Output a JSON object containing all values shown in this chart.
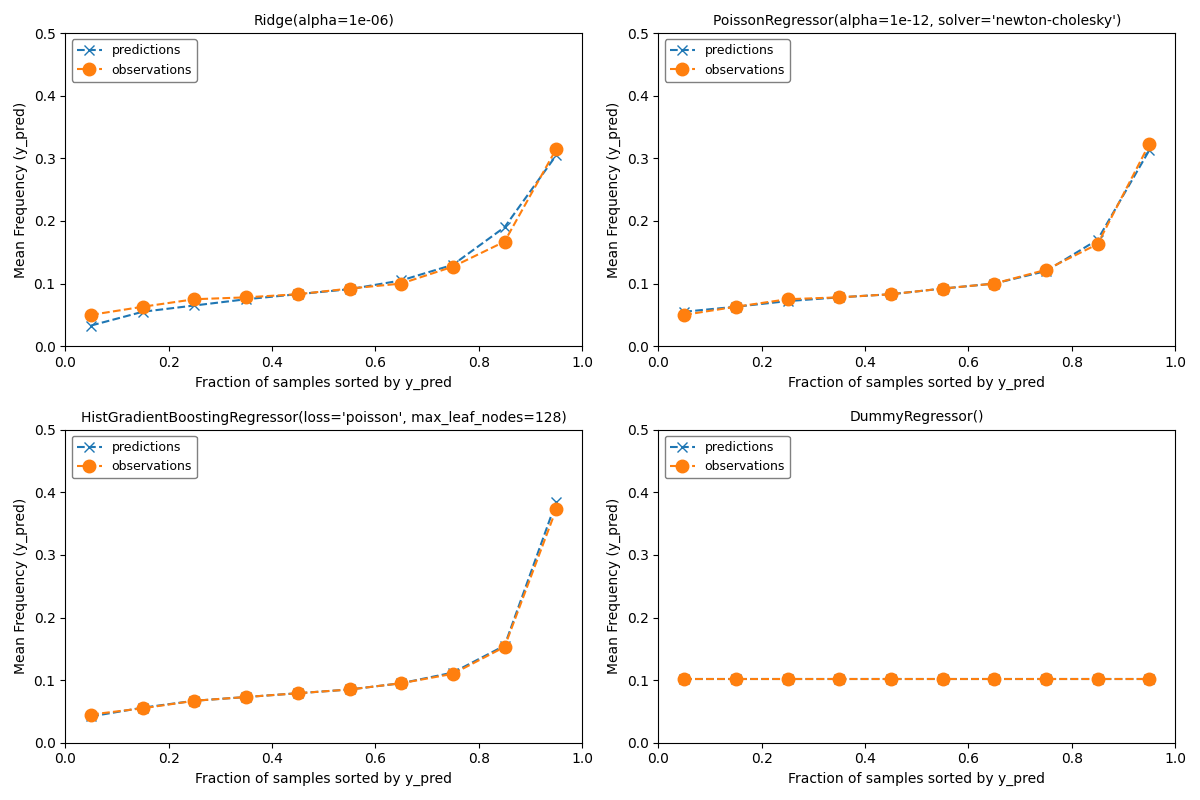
{
  "subplots": [
    {
      "title": "Ridge(alpha=1e-06)",
      "x": [
        0.05,
        0.15,
        0.25,
        0.35,
        0.45,
        0.55,
        0.65,
        0.75,
        0.85,
        0.95
      ],
      "pred_y": [
        0.033,
        0.055,
        0.065,
        0.075,
        0.083,
        0.091,
        0.105,
        0.13,
        0.19,
        0.305
      ],
      "obs_y": [
        0.05,
        0.063,
        0.075,
        0.078,
        0.083,
        0.092,
        0.1,
        0.127,
        0.167,
        0.315
      ]
    },
    {
      "title": "PoissonRegressor(alpha=1e-12, solver='newton-cholesky')",
      "x": [
        0.05,
        0.15,
        0.25,
        0.35,
        0.45,
        0.55,
        0.65,
        0.75,
        0.85,
        0.95
      ],
      "pred_y": [
        0.055,
        0.063,
        0.072,
        0.078,
        0.083,
        0.092,
        0.1,
        0.12,
        0.17,
        0.313
      ],
      "obs_y": [
        0.05,
        0.063,
        0.075,
        0.078,
        0.083,
        0.092,
        0.1,
        0.122,
        0.163,
        0.323
      ]
    },
    {
      "title": "HistGradientBoostingRegressor(loss='poisson', max_leaf_nodes=128)",
      "x": [
        0.05,
        0.15,
        0.25,
        0.35,
        0.45,
        0.55,
        0.65,
        0.75,
        0.85,
        0.95
      ],
      "pred_y": [
        0.042,
        0.056,
        0.067,
        0.073,
        0.079,
        0.085,
        0.095,
        0.112,
        0.155,
        0.385
      ],
      "obs_y": [
        0.045,
        0.055,
        0.067,
        0.073,
        0.079,
        0.085,
        0.095,
        0.11,
        0.153,
        0.373
      ]
    },
    {
      "title": "DummyRegressor()",
      "x": [
        0.05,
        0.15,
        0.25,
        0.35,
        0.45,
        0.55,
        0.65,
        0.75,
        0.85,
        0.95
      ],
      "pred_y": [
        0.101,
        0.101,
        0.101,
        0.101,
        0.101,
        0.101,
        0.101,
        0.101,
        0.101,
        0.101
      ],
      "obs_y": [
        0.101,
        0.101,
        0.101,
        0.101,
        0.101,
        0.101,
        0.101,
        0.101,
        0.101,
        0.101
      ]
    }
  ],
  "xlabel": "Fraction of samples sorted by y_pred",
  "ylabel": "Mean Frequency (y_pred)",
  "pred_color": "#1f77b4",
  "obs_color": "#ff7f0e",
  "ylim": [
    0.0,
    0.5
  ],
  "xlim": [
    0.0,
    1.0
  ],
  "pred_label": "predictions",
  "obs_label": "observations",
  "linestyle": "--",
  "pred_marker": "x",
  "obs_marker": "o",
  "pred_markersize": 7,
  "obs_markersize": 9,
  "linewidth": 1.5,
  "legend_loc": "upper left",
  "title_fontsize": 10,
  "label_fontsize": 10,
  "legend_fontsize": 9
}
